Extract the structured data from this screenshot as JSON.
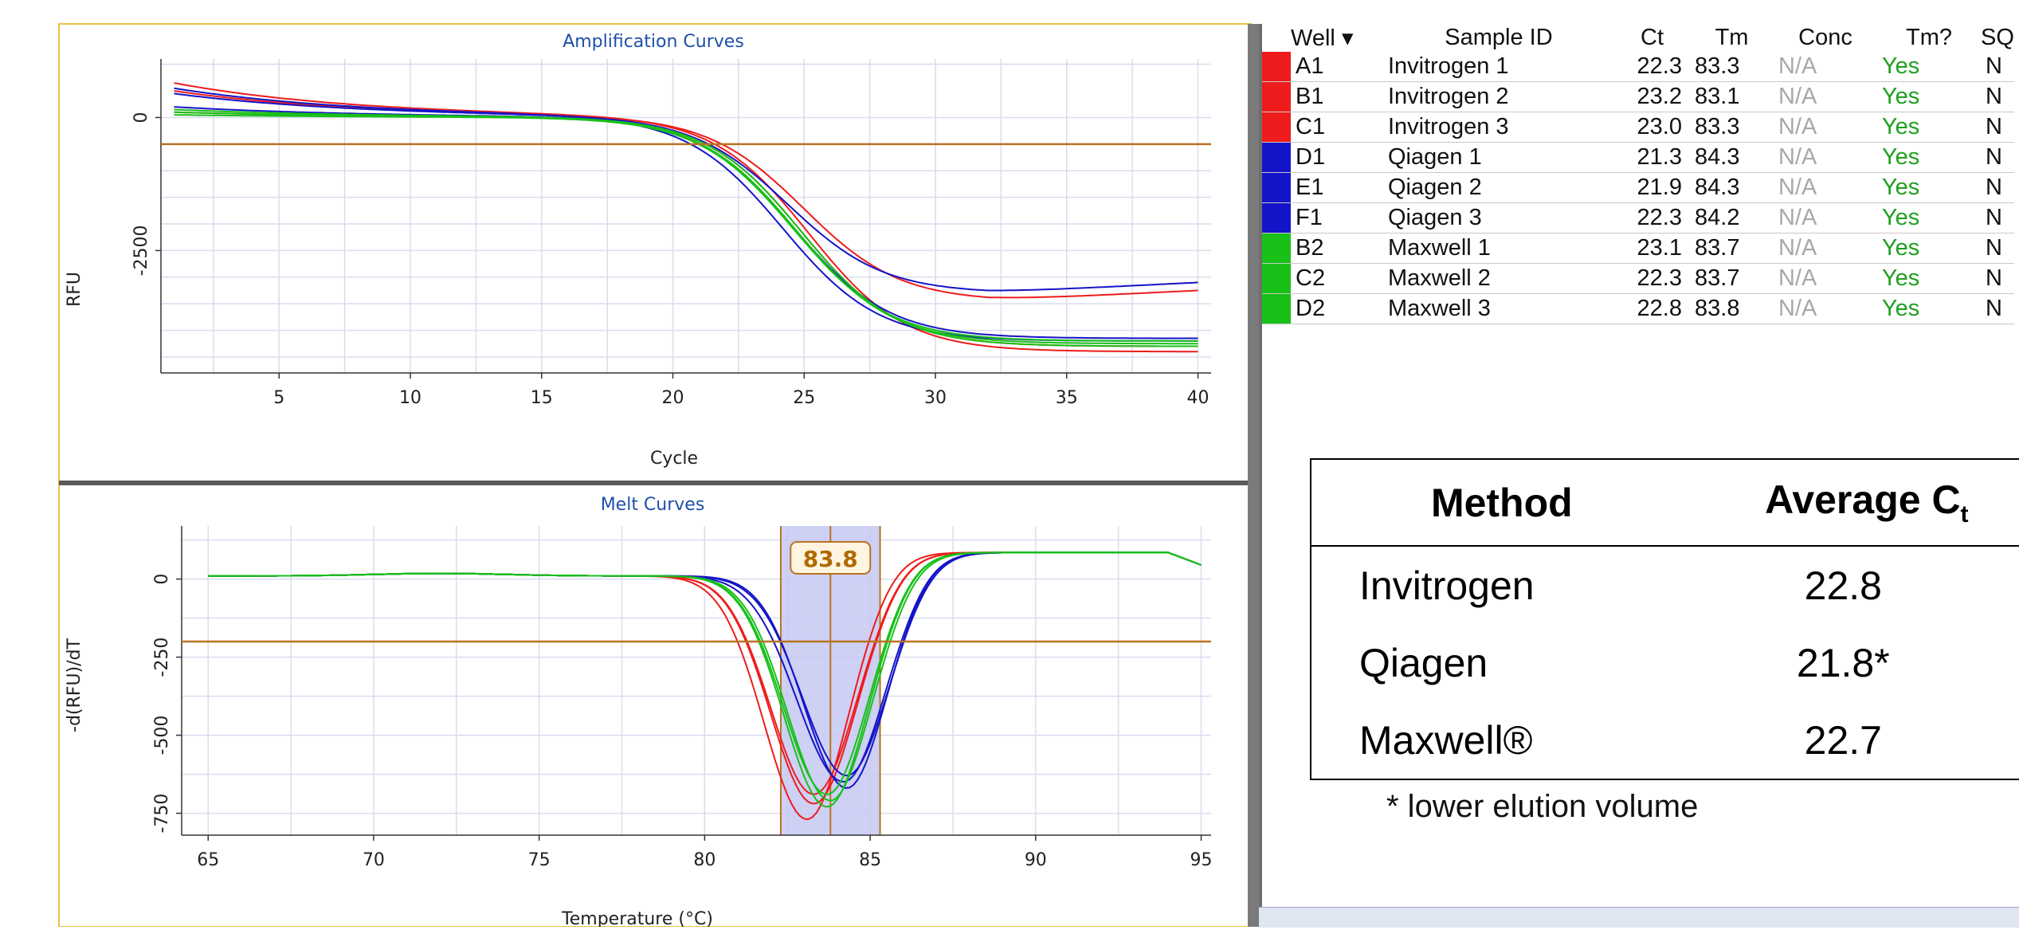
{
  "amplification": {
    "title": "Amplification Curves",
    "xlabel": "Cycle",
    "ylabel": "RFU",
    "x_ticks": [
      "5",
      "10",
      "15",
      "20",
      "25",
      "30",
      "35",
      "40"
    ],
    "y_ticks": [
      "0",
      "-2500"
    ]
  },
  "melt": {
    "title": "Melt Curves",
    "xlabel": "Temperature (°C)",
    "ylabel": "-d(RFU)/dT",
    "x_ticks": [
      "65",
      "70",
      "75",
      "80",
      "85",
      "90",
      "95"
    ],
    "y_ticks": [
      "0",
      "-250",
      "-500",
      "-750"
    ],
    "peak_label": "83.8"
  },
  "wells_table": {
    "headers": [
      "Well",
      "Sample ID",
      "Ct",
      "Tm",
      "Conc",
      "Tm?",
      "SQ"
    ],
    "rows": [
      {
        "well": "A1",
        "sample": "Invitrogen 1",
        "ct": "22.3",
        "tm": "83.3",
        "conc": "N/A",
        "tmq": "Yes",
        "sq": "N",
        "color": "#ee1c1c"
      },
      {
        "well": "B1",
        "sample": "Invitrogen 2",
        "ct": "23.2",
        "tm": "83.1",
        "conc": "N/A",
        "tmq": "Yes",
        "sq": "N",
        "color": "#ee1c1c"
      },
      {
        "well": "C1",
        "sample": "Invitrogen 3",
        "ct": "23.0",
        "tm": "83.3",
        "conc": "N/A",
        "tmq": "Yes",
        "sq": "N",
        "color": "#ee1c1c"
      },
      {
        "well": "D1",
        "sample": "Qiagen 1",
        "ct": "21.3",
        "tm": "84.3",
        "conc": "N/A",
        "tmq": "Yes",
        "sq": "N",
        "color": "#1414c8"
      },
      {
        "well": "E1",
        "sample": "Qiagen 2",
        "ct": "21.9",
        "tm": "84.3",
        "conc": "N/A",
        "tmq": "Yes",
        "sq": "N",
        "color": "#1414c8"
      },
      {
        "well": "F1",
        "sample": "Qiagen 3",
        "ct": "22.3",
        "tm": "84.2",
        "conc": "N/A",
        "tmq": "Yes",
        "sq": "N",
        "color": "#1414c8"
      },
      {
        "well": "B2",
        "sample": "Maxwell 1",
        "ct": "23.1",
        "tm": "83.7",
        "conc": "N/A",
        "tmq": "Yes",
        "sq": "N",
        "color": "#18c018"
      },
      {
        "well": "C2",
        "sample": "Maxwell 2",
        "ct": "22.3",
        "tm": "83.7",
        "conc": "N/A",
        "tmq": "Yes",
        "sq": "N",
        "color": "#18c018"
      },
      {
        "well": "D2",
        "sample": "Maxwell 3",
        "ct": "22.8",
        "tm": "83.8",
        "conc": "N/A",
        "tmq": "Yes",
        "sq": "N",
        "color": "#18c018"
      }
    ]
  },
  "summary": {
    "col_method": "Method",
    "col_avg": "Average C",
    "col_avg_sub": "t",
    "rows": [
      {
        "method": "Invitrogen",
        "value": "22.8"
      },
      {
        "method": "Qiagen",
        "value": "21.8*"
      },
      {
        "method": "Maxwell®",
        "value": "22.7"
      }
    ],
    "footnote": "* lower elution volume"
  },
  "chart_data": [
    {
      "type": "line",
      "title": "Amplification Curves",
      "xlabel": "Cycle",
      "ylabel": "RFU",
      "xlim": [
        0.5,
        40.5
      ],
      "ylim": [
        -4800,
        1100
      ],
      "threshold": -500,
      "grid": true,
      "series": [
        {
          "color": "#ee1c1c",
          "params": {
            "start": 650,
            "plateau": -4400,
            "mid": 25.2,
            "k": 0.55,
            "slope": 0
          }
        },
        {
          "color": "#ee1c1c",
          "params": {
            "start": 500,
            "plateau": -3450,
            "mid": 25.0,
            "k": 0.55,
            "slope": 25
          }
        },
        {
          "color": "#ee1c1c",
          "params": {
            "start": 100,
            "plateau": -4300,
            "mid": 24.9,
            "k": 0.55,
            "slope": 0
          }
        },
        {
          "color": "#1414c8",
          "params": {
            "start": 550,
            "plateau": -4200,
            "mid": 24.2,
            "k": 0.55,
            "slope": 0
          }
        },
        {
          "color": "#1414c8",
          "params": {
            "start": 450,
            "plateau": -3300,
            "mid": 24.4,
            "k": 0.55,
            "slope": 25
          }
        },
        {
          "color": "#1414c8",
          "params": {
            "start": 200,
            "plateau": -4150,
            "mid": 24.6,
            "k": 0.55,
            "slope": 0
          }
        },
        {
          "color": "#18c018",
          "params": {
            "start": 150,
            "plateau": -4300,
            "mid": 24.9,
            "k": 0.55,
            "slope": 0
          }
        },
        {
          "color": "#18c018",
          "params": {
            "start": 100,
            "plateau": -4250,
            "mid": 24.7,
            "k": 0.55,
            "slope": 0
          }
        },
        {
          "color": "#18c018",
          "params": {
            "start": 50,
            "plateau": -4200,
            "mid": 24.6,
            "k": 0.55,
            "slope": 0
          }
        }
      ]
    },
    {
      "type": "line",
      "title": "Melt Curves",
      "xlabel": "Temperature (°C)",
      "ylabel": "-d(RFU)/dT",
      "xlim": [
        64.2,
        95.3
      ],
      "ylim": [
        -820,
        170
      ],
      "threshold": -200,
      "highlight_range": [
        82.3,
        85.3
      ],
      "peak_marker": 83.8,
      "grid": true,
      "series": [
        {
          "color": "#ee1c1c",
          "params": {
            "center": 83.3,
            "depth": -730,
            "sigL": 1.3,
            "sigR": 1.25
          }
        },
        {
          "color": "#ee1c1c",
          "params": {
            "center": 83.1,
            "depth": -780,
            "sigL": 1.3,
            "sigR": 1.2
          }
        },
        {
          "color": "#ee1c1c",
          "params": {
            "center": 83.3,
            "depth": -700,
            "sigL": 1.3,
            "sigR": 1.25
          }
        },
        {
          "color": "#1414c8",
          "params": {
            "center": 84.3,
            "depth": -640,
            "sigL": 1.35,
            "sigR": 1.2
          }
        },
        {
          "color": "#1414c8",
          "params": {
            "center": 84.3,
            "depth": -680,
            "sigL": 1.3,
            "sigR": 1.15
          }
        },
        {
          "color": "#1414c8",
          "params": {
            "center": 84.2,
            "depth": -660,
            "sigL": 1.4,
            "sigR": 1.2
          }
        },
        {
          "color": "#18c018",
          "params": {
            "center": 83.7,
            "depth": -740,
            "sigL": 1.3,
            "sigR": 1.2
          }
        },
        {
          "color": "#18c018",
          "params": {
            "center": 83.7,
            "depth": -700,
            "sigL": 1.3,
            "sigR": 1.2
          }
        },
        {
          "color": "#18c018",
          "params": {
            "center": 83.8,
            "depth": -720,
            "sigL": 1.3,
            "sigR": 1.2
          }
        }
      ]
    }
  ]
}
